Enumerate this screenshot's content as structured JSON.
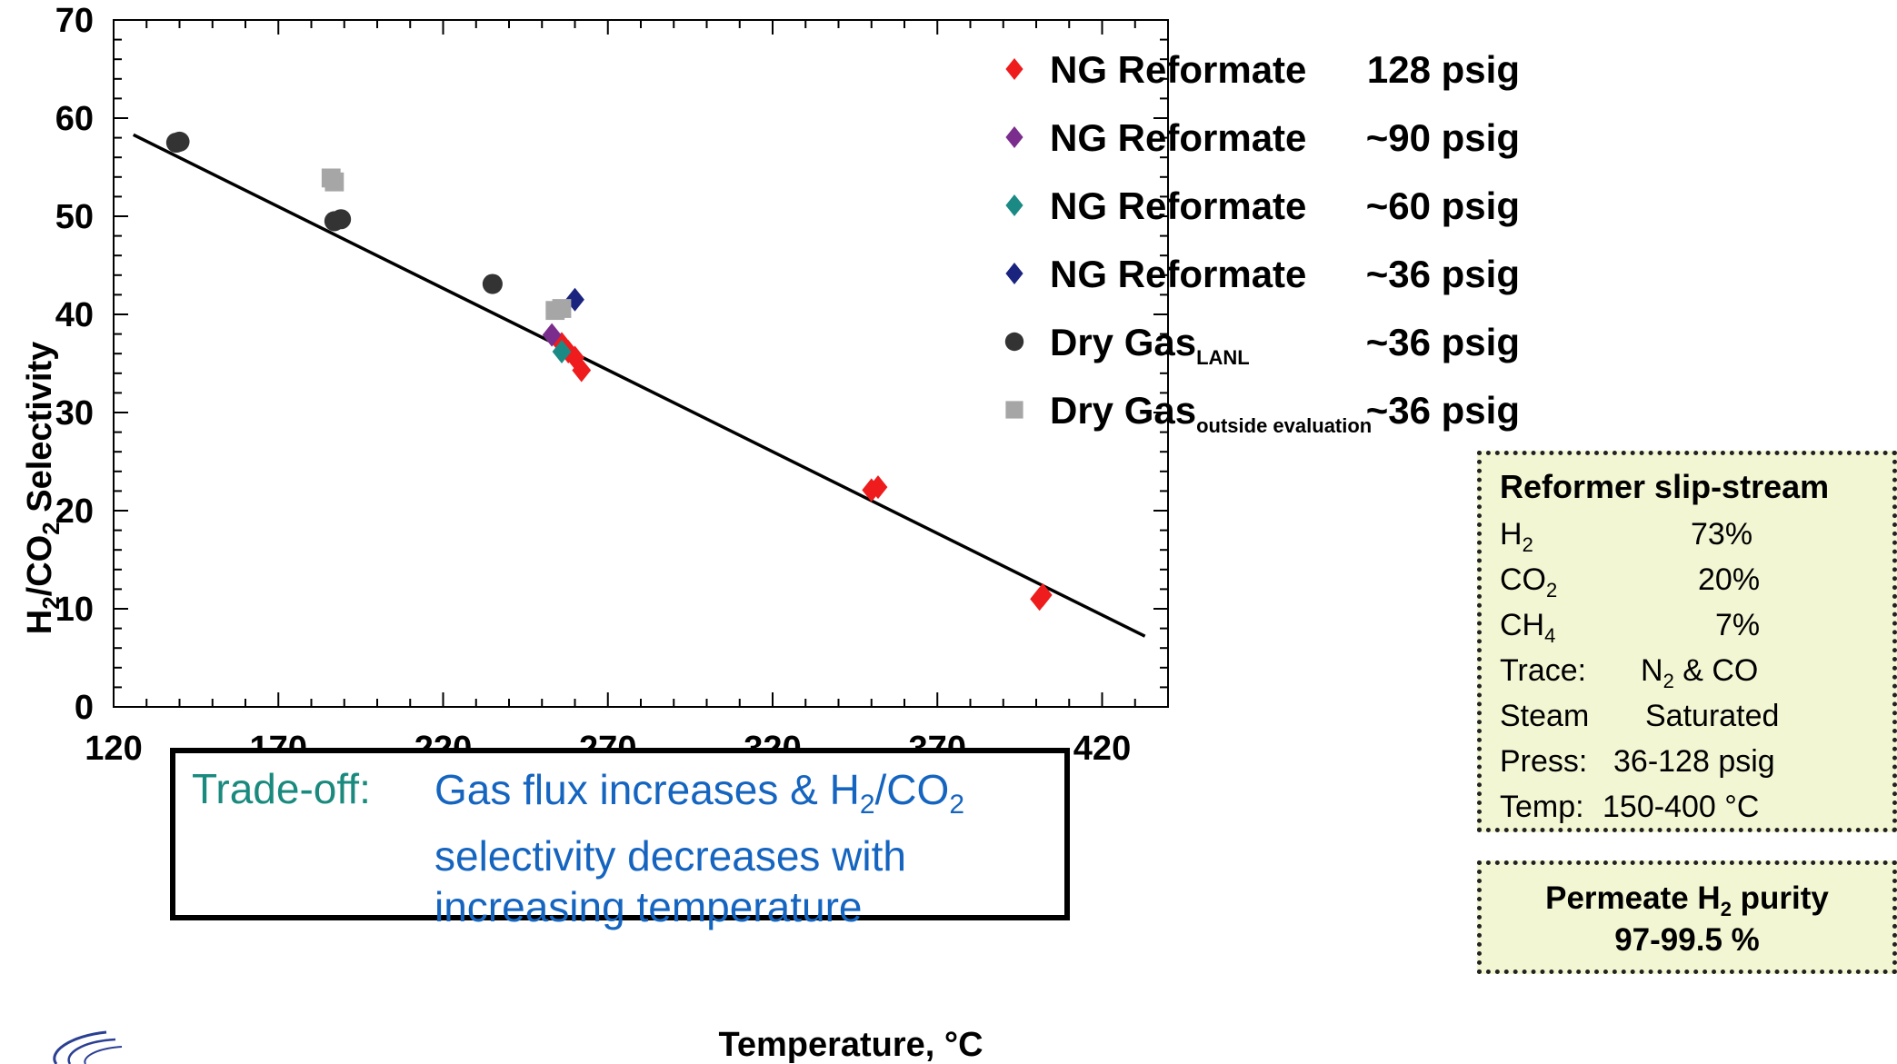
{
  "chart_data": {
    "type": "scatter",
    "xlabel": "Temperature, °C",
    "ylabel": {
      "pre": "H",
      "sub1": "2",
      "mid": "/CO",
      "sub2": "2",
      "post": " Selectivity"
    },
    "xlim": [
      120,
      440
    ],
    "ylim": [
      0,
      70
    ],
    "xticks": [
      "120",
      "170",
      "220",
      "270",
      "320",
      "370",
      "420"
    ],
    "yticks": [
      "0",
      "10",
      "20",
      "30",
      "40",
      "50",
      "60",
      "70"
    ],
    "series": [
      {
        "name": "NG Reformate",
        "pressure": "128 psig",
        "marker": "diamond",
        "color": "#ee1c1c",
        "points": [
          [
            256,
            37.0
          ],
          [
            258,
            36.2
          ],
          [
            260,
            35.6
          ],
          [
            262,
            34.3
          ],
          [
            350,
            22.1
          ],
          [
            352,
            22.4
          ],
          [
            401,
            11.0
          ],
          [
            402,
            11.4
          ]
        ]
      },
      {
        "name": "NG Reformate",
        "pressure": "~90 psig",
        "marker": "diamond",
        "color": "#7b2d8e",
        "points": [
          [
            253,
            37.9
          ]
        ]
      },
      {
        "name": "NG Reformate",
        "pressure": "~60 psig",
        "marker": "diamond",
        "color": "#1b8a85",
        "points": [
          [
            256,
            36.2
          ]
        ]
      },
      {
        "name": "NG Reformate",
        "pressure": "~36 psig",
        "marker": "diamond",
        "color": "#1a237e",
        "points": [
          [
            260,
            41.5
          ]
        ]
      },
      {
        "name": "Dry Gas",
        "name_sub": "LANL",
        "pressure": "~36 psig",
        "marker": "circle",
        "color": "#333333",
        "points": [
          [
            139,
            57.5
          ],
          [
            140,
            57.6
          ],
          [
            187,
            49.5
          ],
          [
            189,
            49.7
          ],
          [
            235,
            43.1
          ]
        ]
      },
      {
        "name": "Dry Gas",
        "name_sub": "outside evaluation",
        "pressure": "~36 psig",
        "marker": "square",
        "color": "#a6a6a6",
        "points": [
          [
            186,
            53.9
          ],
          [
            187,
            53.5
          ],
          [
            254,
            40.4
          ],
          [
            256,
            40.6
          ]
        ]
      }
    ],
    "trendline": {
      "x": [
        126,
        433
      ],
      "y": [
        58.3,
        7.2
      ],
      "color": "#000000"
    }
  },
  "tradeoff": {
    "label": "Trade-off:",
    "line1_pre": "Gas flux increases & H",
    "line1_sub": "2",
    "line1_post": "/CO",
    "line1_sub2": "2",
    "line2": "selectivity decreases with",
    "line3": "increasing temperature"
  },
  "info": {
    "title": "Reformer slip-stream",
    "rows": [
      {
        "key": "H",
        "key_sub": "2",
        "value": "73%"
      },
      {
        "key": "CO",
        "key_sub": "2",
        "value": "20%"
      },
      {
        "key": "CH",
        "key_sub": "4",
        "value": "7%"
      },
      {
        "key": "Trace:",
        "key_sub": "",
        "value_pre": "N",
        "value_sub": "2",
        "value": " & CO"
      },
      {
        "key": "Steam",
        "key_sub": "",
        "value": "Saturated"
      },
      {
        "key": "Press:",
        "key_sub": "",
        "value": "36-128 psig"
      },
      {
        "key": "Temp:",
        "key_sub": "",
        "value": "150-400 °C"
      }
    ]
  },
  "purity": {
    "line1_pre": "Permeate H",
    "line1_sub": "2",
    "line1_post": " purity",
    "line2": "97-99.5 %"
  },
  "logo_icon": "swoosh-logo-icon"
}
